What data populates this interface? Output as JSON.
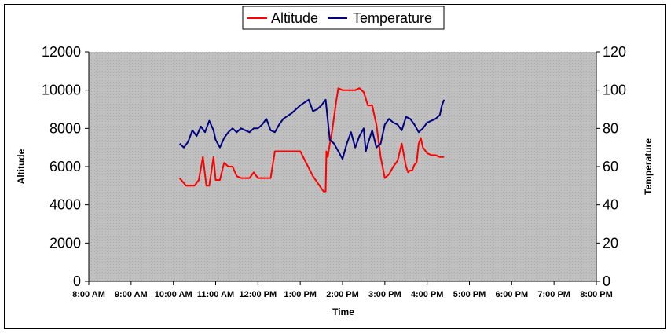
{
  "chart_data": {
    "type": "line",
    "xlabel": "Time",
    "ylabel": "Altitude",
    "y2label": "Temperature",
    "x_tick_labels": [
      "8:00 AM",
      "9:00 AM",
      "10:00 AM",
      "11:00 AM",
      "12:00 PM",
      "1:00 PM",
      "2:00 PM",
      "3:00 PM",
      "4:00 PM",
      "5:00 PM",
      "6:00 PM",
      "7:00 PM",
      "8:00 PM"
    ],
    "xlim": [
      8,
      20
    ],
    "ylim": [
      0,
      12000
    ],
    "y_ticks": [
      "0",
      "2000",
      "4000",
      "6000",
      "8000",
      "10000",
      "12000"
    ],
    "y2lim": [
      0,
      120
    ],
    "y2_ticks": [
      "0",
      "20",
      "40",
      "60",
      "80",
      "100",
      "120"
    ],
    "legend_position": "top-center",
    "series": [
      {
        "name": "Altitude",
        "axis": "left",
        "color": "#ff0000",
        "x": [
          10.15,
          10.3,
          10.5,
          10.6,
          10.7,
          10.78,
          10.85,
          10.95,
          11.0,
          11.1,
          11.2,
          11.3,
          11.4,
          11.5,
          11.6,
          11.7,
          11.8,
          11.9,
          12.0,
          12.1,
          12.2,
          12.3,
          12.4,
          12.5,
          12.6,
          13.0,
          13.3,
          13.55,
          13.6,
          13.62,
          13.65,
          13.7,
          13.75,
          13.8,
          13.85,
          13.9,
          14.0,
          14.1,
          14.2,
          14.3,
          14.4,
          14.5,
          14.6,
          14.7,
          14.8,
          14.9,
          15.0,
          15.1,
          15.2,
          15.3,
          15.4,
          15.5,
          15.55,
          15.6,
          15.65,
          15.7,
          15.75,
          15.8,
          15.85,
          15.9,
          16.0,
          16.1,
          16.2,
          16.3,
          16.4
        ],
        "values": [
          5400,
          5000,
          5000,
          5300,
          6500,
          5000,
          5000,
          6500,
          5300,
          5300,
          6200,
          6000,
          6000,
          5500,
          5400,
          5400,
          5400,
          5700,
          5400,
          5400,
          5400,
          5400,
          6800,
          6800,
          6800,
          6800,
          5500,
          4700,
          4700,
          6800,
          6500,
          7200,
          7800,
          8600,
          9400,
          10100,
          10000,
          10000,
          10000,
          10000,
          10100,
          9900,
          9200,
          9200,
          8200,
          6500,
          5400,
          5600,
          6000,
          6300,
          7200,
          6000,
          5700,
          5800,
          5800,
          6100,
          6200,
          7200,
          7500,
          7000,
          6700,
          6600,
          6600,
          6500,
          6500
        ]
      },
      {
        "name": "Temperature",
        "axis": "right",
        "color": "#000080",
        "x": [
          10.15,
          10.25,
          10.35,
          10.45,
          10.55,
          10.65,
          10.75,
          10.85,
          10.95,
          11.0,
          11.1,
          11.2,
          11.3,
          11.4,
          11.5,
          11.6,
          11.7,
          11.8,
          11.9,
          12.0,
          12.1,
          12.2,
          12.3,
          12.4,
          12.5,
          12.6,
          12.8,
          13.0,
          13.2,
          13.3,
          13.4,
          13.5,
          13.6,
          13.7,
          13.8,
          13.9,
          14.0,
          14.1,
          14.2,
          14.3,
          14.4,
          14.5,
          14.55,
          14.6,
          14.7,
          14.8,
          14.9,
          15.0,
          15.1,
          15.2,
          15.3,
          15.4,
          15.5,
          15.6,
          15.7,
          15.8,
          15.9,
          16.0,
          16.1,
          16.2,
          16.3,
          16.35,
          16.4
        ],
        "values": [
          72,
          70,
          73,
          79,
          76,
          81,
          78,
          84,
          79,
          74,
          70,
          75,
          78,
          80,
          78,
          80,
          79,
          78,
          80,
          80,
          82,
          85,
          79,
          78,
          82,
          85,
          88,
          92,
          95,
          89,
          90,
          92,
          95,
          74,
          72,
          68,
          64,
          72,
          78,
          70,
          76,
          80,
          68,
          72,
          79,
          70,
          72,
          82,
          85,
          83,
          82,
          79,
          86,
          85,
          82,
          78,
          80,
          83,
          84,
          85,
          87,
          92,
          95
        ]
      }
    ]
  }
}
